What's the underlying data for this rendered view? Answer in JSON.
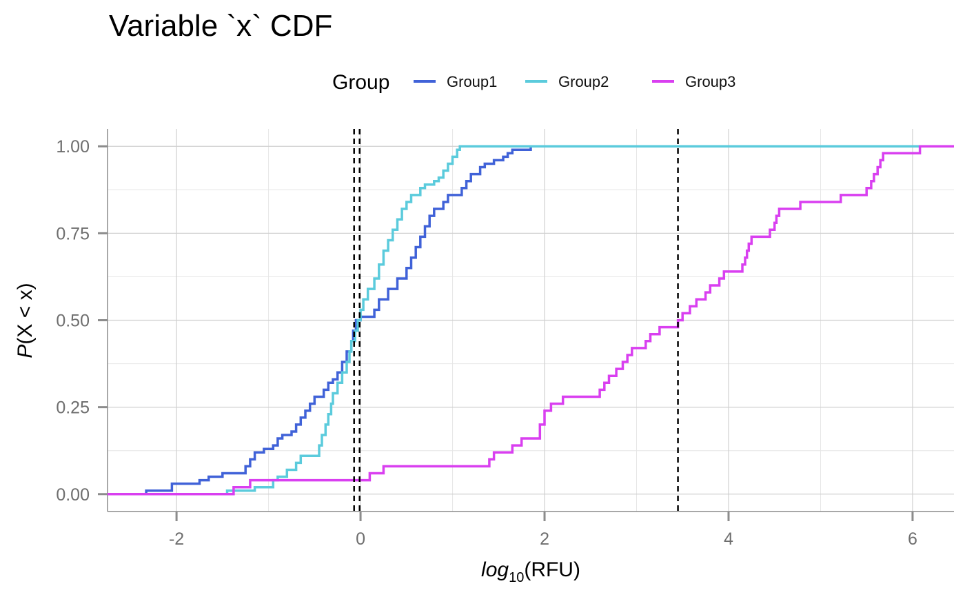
{
  "chart_data": {
    "type": "line",
    "title": "Variable `x` CDF",
    "xlabel": {
      "main": "log",
      "sub": "10",
      "rest": "(RFU)"
    },
    "ylabel": {
      "main": "P",
      "rest": "(X < x)"
    },
    "xlim": [
      -2.75,
      6.45
    ],
    "ylim": [
      -0.05,
      1.05
    ],
    "x_ticks": [
      -2,
      0,
      2,
      4,
      6
    ],
    "x_tick_labels": [
      "-2",
      "0",
      "2",
      "4",
      "6"
    ],
    "y_ticks": [
      0,
      0.25,
      0.5,
      0.75,
      1.0
    ],
    "y_tick_labels": [
      "0.00",
      "0.25",
      "0.50",
      "0.75",
      "1.00"
    ],
    "grid": true,
    "legend": {
      "title": "Group",
      "position": "top"
    },
    "vlines": [
      -0.07,
      -0.01,
      3.45
    ],
    "series": [
      {
        "name": "Group1",
        "color": "#4062d8",
        "points": [
          [
            -2.75,
            0
          ],
          [
            -2.33,
            0
          ],
          [
            -2.33,
            0.01
          ],
          [
            -2.05,
            0.01
          ],
          [
            -2.05,
            0.03
          ],
          [
            -1.75,
            0.03
          ],
          [
            -1.75,
            0.04
          ],
          [
            -1.65,
            0.04
          ],
          [
            -1.65,
            0.05
          ],
          [
            -1.5,
            0.05
          ],
          [
            -1.5,
            0.06
          ],
          [
            -1.25,
            0.06
          ],
          [
            -1.25,
            0.08
          ],
          [
            -1.2,
            0.08
          ],
          [
            -1.2,
            0.1
          ],
          [
            -1.15,
            0.1
          ],
          [
            -1.15,
            0.12
          ],
          [
            -1.05,
            0.12
          ],
          [
            -1.05,
            0.13
          ],
          [
            -0.95,
            0.13
          ],
          [
            -0.95,
            0.14
          ],
          [
            -0.9,
            0.14
          ],
          [
            -0.9,
            0.16
          ],
          [
            -0.85,
            0.16
          ],
          [
            -0.85,
            0.17
          ],
          [
            -0.75,
            0.17
          ],
          [
            -0.75,
            0.18
          ],
          [
            -0.7,
            0.18
          ],
          [
            -0.7,
            0.2
          ],
          [
            -0.65,
            0.2
          ],
          [
            -0.65,
            0.22
          ],
          [
            -0.6,
            0.22
          ],
          [
            -0.6,
            0.24
          ],
          [
            -0.55,
            0.24
          ],
          [
            -0.55,
            0.26
          ],
          [
            -0.5,
            0.26
          ],
          [
            -0.5,
            0.28
          ],
          [
            -0.4,
            0.28
          ],
          [
            -0.4,
            0.3
          ],
          [
            -0.35,
            0.3
          ],
          [
            -0.35,
            0.32
          ],
          [
            -0.3,
            0.32
          ],
          [
            -0.3,
            0.33
          ],
          [
            -0.25,
            0.33
          ],
          [
            -0.25,
            0.35
          ],
          [
            -0.2,
            0.35
          ],
          [
            -0.2,
            0.38
          ],
          [
            -0.15,
            0.38
          ],
          [
            -0.15,
            0.41
          ],
          [
            -0.1,
            0.41
          ],
          [
            -0.1,
            0.44
          ],
          [
            -0.08,
            0.44
          ],
          [
            -0.08,
            0.47
          ],
          [
            -0.05,
            0.47
          ],
          [
            -0.05,
            0.5
          ],
          [
            0.0,
            0.5
          ],
          [
            0.0,
            0.51
          ],
          [
            0.15,
            0.51
          ],
          [
            0.15,
            0.53
          ],
          [
            0.2,
            0.53
          ],
          [
            0.2,
            0.56
          ],
          [
            0.3,
            0.56
          ],
          [
            0.3,
            0.59
          ],
          [
            0.4,
            0.59
          ],
          [
            0.4,
            0.62
          ],
          [
            0.5,
            0.62
          ],
          [
            0.5,
            0.65
          ],
          [
            0.55,
            0.65
          ],
          [
            0.55,
            0.68
          ],
          [
            0.6,
            0.68
          ],
          [
            0.6,
            0.71
          ],
          [
            0.65,
            0.71
          ],
          [
            0.65,
            0.74
          ],
          [
            0.7,
            0.74
          ],
          [
            0.7,
            0.77
          ],
          [
            0.75,
            0.77
          ],
          [
            0.75,
            0.8
          ],
          [
            0.8,
            0.8
          ],
          [
            0.8,
            0.82
          ],
          [
            0.9,
            0.82
          ],
          [
            0.9,
            0.84
          ],
          [
            0.95,
            0.84
          ],
          [
            0.95,
            0.86
          ],
          [
            1.1,
            0.86
          ],
          [
            1.1,
            0.88
          ],
          [
            1.15,
            0.88
          ],
          [
            1.15,
            0.9
          ],
          [
            1.2,
            0.9
          ],
          [
            1.2,
            0.92
          ],
          [
            1.3,
            0.92
          ],
          [
            1.3,
            0.94
          ],
          [
            1.35,
            0.94
          ],
          [
            1.35,
            0.95
          ],
          [
            1.45,
            0.95
          ],
          [
            1.45,
            0.96
          ],
          [
            1.55,
            0.96
          ],
          [
            1.55,
            0.97
          ],
          [
            1.6,
            0.97
          ],
          [
            1.6,
            0.98
          ],
          [
            1.65,
            0.98
          ],
          [
            1.65,
            0.99
          ],
          [
            1.85,
            0.99
          ],
          [
            1.85,
            1.0
          ],
          [
            6.45,
            1.0
          ]
        ]
      },
      {
        "name": "Group2",
        "color": "#5bcbdc",
        "points": [
          [
            -2.75,
            0
          ],
          [
            -1.45,
            0
          ],
          [
            -1.45,
            0.01
          ],
          [
            -1.15,
            0.01
          ],
          [
            -1.15,
            0.02
          ],
          [
            -0.95,
            0.02
          ],
          [
            -0.95,
            0.04
          ],
          [
            -0.9,
            0.04
          ],
          [
            -0.9,
            0.05
          ],
          [
            -0.8,
            0.05
          ],
          [
            -0.8,
            0.07
          ],
          [
            -0.7,
            0.07
          ],
          [
            -0.7,
            0.09
          ],
          [
            -0.65,
            0.09
          ],
          [
            -0.65,
            0.11
          ],
          [
            -0.45,
            0.11
          ],
          [
            -0.45,
            0.14
          ],
          [
            -0.42,
            0.14
          ],
          [
            -0.42,
            0.17
          ],
          [
            -0.38,
            0.17
          ],
          [
            -0.38,
            0.2
          ],
          [
            -0.35,
            0.2
          ],
          [
            -0.35,
            0.23
          ],
          [
            -0.32,
            0.23
          ],
          [
            -0.32,
            0.26
          ],
          [
            -0.3,
            0.26
          ],
          [
            -0.3,
            0.29
          ],
          [
            -0.25,
            0.29
          ],
          [
            -0.25,
            0.32
          ],
          [
            -0.2,
            0.32
          ],
          [
            -0.2,
            0.35
          ],
          [
            -0.15,
            0.35
          ],
          [
            -0.15,
            0.38
          ],
          [
            -0.12,
            0.38
          ],
          [
            -0.12,
            0.41
          ],
          [
            -0.1,
            0.41
          ],
          [
            -0.1,
            0.44
          ],
          [
            -0.06,
            0.44
          ],
          [
            -0.06,
            0.47
          ],
          [
            -0.03,
            0.47
          ],
          [
            -0.03,
            0.5
          ],
          [
            0.0,
            0.5
          ],
          [
            0.0,
            0.53
          ],
          [
            0.03,
            0.53
          ],
          [
            0.03,
            0.56
          ],
          [
            0.08,
            0.56
          ],
          [
            0.08,
            0.59
          ],
          [
            0.15,
            0.59
          ],
          [
            0.15,
            0.62
          ],
          [
            0.2,
            0.62
          ],
          [
            0.2,
            0.66
          ],
          [
            0.25,
            0.66
          ],
          [
            0.25,
            0.7
          ],
          [
            0.3,
            0.7
          ],
          [
            0.3,
            0.73
          ],
          [
            0.35,
            0.73
          ],
          [
            0.35,
            0.76
          ],
          [
            0.4,
            0.76
          ],
          [
            0.4,
            0.79
          ],
          [
            0.45,
            0.79
          ],
          [
            0.45,
            0.82
          ],
          [
            0.5,
            0.82
          ],
          [
            0.5,
            0.84
          ],
          [
            0.55,
            0.84
          ],
          [
            0.55,
            0.86
          ],
          [
            0.65,
            0.86
          ],
          [
            0.65,
            0.88
          ],
          [
            0.7,
            0.88
          ],
          [
            0.7,
            0.89
          ],
          [
            0.8,
            0.89
          ],
          [
            0.8,
            0.9
          ],
          [
            0.85,
            0.9
          ],
          [
            0.85,
            0.91
          ],
          [
            0.9,
            0.91
          ],
          [
            0.9,
            0.93
          ],
          [
            0.95,
            0.93
          ],
          [
            0.95,
            0.95
          ],
          [
            1.0,
            0.95
          ],
          [
            1.0,
            0.97
          ],
          [
            1.05,
            0.97
          ],
          [
            1.05,
            0.99
          ],
          [
            1.08,
            0.99
          ],
          [
            1.08,
            1.0
          ],
          [
            6.45,
            1.0
          ]
        ]
      },
      {
        "name": "Group3",
        "color": "#d93ff0",
        "points": [
          [
            -2.75,
            0
          ],
          [
            -1.38,
            0
          ],
          [
            -1.38,
            0.02
          ],
          [
            -1.2,
            0.02
          ],
          [
            -1.2,
            0.04
          ],
          [
            0.1,
            0.04
          ],
          [
            0.1,
            0.06
          ],
          [
            0.25,
            0.06
          ],
          [
            0.25,
            0.08
          ],
          [
            1.4,
            0.08
          ],
          [
            1.4,
            0.1
          ],
          [
            1.45,
            0.1
          ],
          [
            1.45,
            0.12
          ],
          [
            1.65,
            0.12
          ],
          [
            1.65,
            0.14
          ],
          [
            1.75,
            0.14
          ],
          [
            1.75,
            0.16
          ],
          [
            1.95,
            0.16
          ],
          [
            1.95,
            0.2
          ],
          [
            2.0,
            0.2
          ],
          [
            2.0,
            0.24
          ],
          [
            2.07,
            0.24
          ],
          [
            2.07,
            0.26
          ],
          [
            2.2,
            0.26
          ],
          [
            2.2,
            0.28
          ],
          [
            2.6,
            0.28
          ],
          [
            2.6,
            0.3
          ],
          [
            2.65,
            0.3
          ],
          [
            2.65,
            0.32
          ],
          [
            2.7,
            0.32
          ],
          [
            2.7,
            0.34
          ],
          [
            2.78,
            0.34
          ],
          [
            2.78,
            0.36
          ],
          [
            2.85,
            0.36
          ],
          [
            2.85,
            0.38
          ],
          [
            2.9,
            0.38
          ],
          [
            2.9,
            0.4
          ],
          [
            2.95,
            0.4
          ],
          [
            2.95,
            0.42
          ],
          [
            3.1,
            0.42
          ],
          [
            3.1,
            0.44
          ],
          [
            3.15,
            0.44
          ],
          [
            3.15,
            0.46
          ],
          [
            3.25,
            0.46
          ],
          [
            3.25,
            0.48
          ],
          [
            3.45,
            0.48
          ],
          [
            3.45,
            0.5
          ],
          [
            3.5,
            0.5
          ],
          [
            3.5,
            0.52
          ],
          [
            3.58,
            0.52
          ],
          [
            3.58,
            0.54
          ],
          [
            3.65,
            0.54
          ],
          [
            3.65,
            0.56
          ],
          [
            3.75,
            0.56
          ],
          [
            3.75,
            0.58
          ],
          [
            3.8,
            0.58
          ],
          [
            3.8,
            0.6
          ],
          [
            3.9,
            0.6
          ],
          [
            3.9,
            0.62
          ],
          [
            3.95,
            0.62
          ],
          [
            3.95,
            0.64
          ],
          [
            4.15,
            0.64
          ],
          [
            4.15,
            0.66
          ],
          [
            4.18,
            0.66
          ],
          [
            4.18,
            0.68
          ],
          [
            4.2,
            0.68
          ],
          [
            4.2,
            0.7
          ],
          [
            4.22,
            0.7
          ],
          [
            4.22,
            0.72
          ],
          [
            4.25,
            0.72
          ],
          [
            4.25,
            0.74
          ],
          [
            4.45,
            0.74
          ],
          [
            4.45,
            0.76
          ],
          [
            4.5,
            0.76
          ],
          [
            4.5,
            0.78
          ],
          [
            4.52,
            0.78
          ],
          [
            4.52,
            0.8
          ],
          [
            4.55,
            0.8
          ],
          [
            4.55,
            0.82
          ],
          [
            4.78,
            0.82
          ],
          [
            4.78,
            0.84
          ],
          [
            5.22,
            0.84
          ],
          [
            5.22,
            0.86
          ],
          [
            5.5,
            0.86
          ],
          [
            5.5,
            0.88
          ],
          [
            5.55,
            0.88
          ],
          [
            5.55,
            0.9
          ],
          [
            5.58,
            0.9
          ],
          [
            5.58,
            0.92
          ],
          [
            5.62,
            0.92
          ],
          [
            5.62,
            0.94
          ],
          [
            5.65,
            0.94
          ],
          [
            5.65,
            0.96
          ],
          [
            5.68,
            0.96
          ],
          [
            5.68,
            0.98
          ],
          [
            6.08,
            0.98
          ],
          [
            6.08,
            1.0
          ],
          [
            6.45,
            1.0
          ]
        ]
      }
    ]
  }
}
